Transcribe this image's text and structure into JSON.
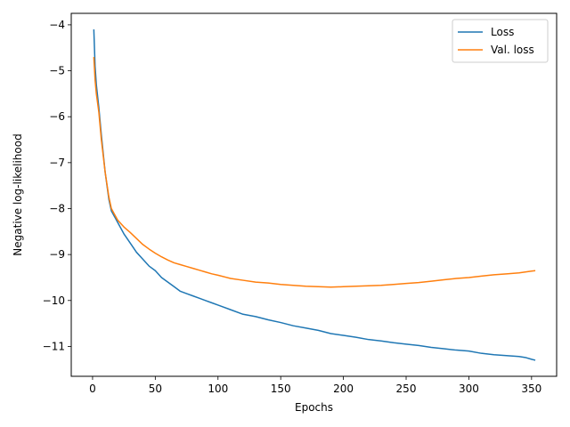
{
  "chart_data": {
    "type": "line",
    "title": "",
    "xlabel": "Epochs",
    "ylabel": "Negative log-likelihood",
    "xlim": [
      -17,
      370
    ],
    "ylim": [
      -11.65,
      -3.75
    ],
    "xticks": [
      0,
      50,
      100,
      150,
      200,
      250,
      300,
      350
    ],
    "yticks": [
      -4,
      -5,
      -6,
      -7,
      -8,
      -9,
      -10,
      -11
    ],
    "ytick_labels": [
      "−4",
      "−5",
      "−6",
      "−7",
      "−8",
      "−9",
      "−10",
      "−11"
    ],
    "grid": false,
    "legend_position": "top-right",
    "series": [
      {
        "name": "Loss",
        "color": "#1f77b4",
        "x": [
          1,
          2,
          3,
          5,
          7,
          10,
          13,
          15,
          18,
          20,
          25,
          30,
          35,
          40,
          45,
          50,
          55,
          60,
          65,
          70,
          75,
          80,
          85,
          90,
          95,
          100,
          110,
          120,
          130,
          140,
          150,
          160,
          170,
          180,
          190,
          200,
          210,
          220,
          230,
          240,
          250,
          260,
          270,
          280,
          290,
          300,
          310,
          320,
          330,
          340,
          345,
          350,
          353
        ],
        "y": [
          -4.1,
          -4.9,
          -5.3,
          -5.8,
          -6.4,
          -7.2,
          -7.8,
          -8.05,
          -8.2,
          -8.3,
          -8.55,
          -8.75,
          -8.95,
          -9.1,
          -9.25,
          -9.35,
          -9.5,
          -9.6,
          -9.7,
          -9.8,
          -9.85,
          -9.9,
          -9.95,
          -10.0,
          -10.05,
          -10.1,
          -10.2,
          -10.3,
          -10.35,
          -10.42,
          -10.48,
          -10.55,
          -10.6,
          -10.65,
          -10.72,
          -10.76,
          -10.8,
          -10.85,
          -10.88,
          -10.92,
          -10.95,
          -10.98,
          -11.02,
          -11.05,
          -11.08,
          -11.1,
          -11.15,
          -11.18,
          -11.2,
          -11.22,
          -11.24,
          -11.28,
          -11.3
        ]
      },
      {
        "name": "Val. loss",
        "color": "#ff7f0e",
        "x": [
          1,
          2,
          3,
          5,
          7,
          10,
          13,
          15,
          18,
          20,
          25,
          30,
          35,
          40,
          45,
          50,
          55,
          60,
          65,
          70,
          75,
          80,
          85,
          90,
          95,
          100,
          110,
          120,
          130,
          140,
          150,
          160,
          170,
          180,
          190,
          200,
          210,
          220,
          230,
          240,
          250,
          260,
          270,
          280,
          290,
          300,
          310,
          320,
          330,
          340,
          345,
          350,
          353
        ],
        "y": [
          -4.7,
          -5.2,
          -5.5,
          -5.9,
          -6.5,
          -7.2,
          -7.75,
          -8.0,
          -8.15,
          -8.25,
          -8.4,
          -8.52,
          -8.65,
          -8.78,
          -8.88,
          -8.97,
          -9.05,
          -9.12,
          -9.18,
          -9.22,
          -9.26,
          -9.3,
          -9.34,
          -9.38,
          -9.42,
          -9.45,
          -9.52,
          -9.56,
          -9.6,
          -9.62,
          -9.65,
          -9.67,
          -9.69,
          -9.7,
          -9.71,
          -9.7,
          -9.69,
          -9.68,
          -9.67,
          -9.65,
          -9.63,
          -9.61,
          -9.58,
          -9.55,
          -9.52,
          -9.5,
          -9.47,
          -9.44,
          -9.42,
          -9.4,
          -9.38,
          -9.36,
          -9.35
        ]
      }
    ]
  }
}
